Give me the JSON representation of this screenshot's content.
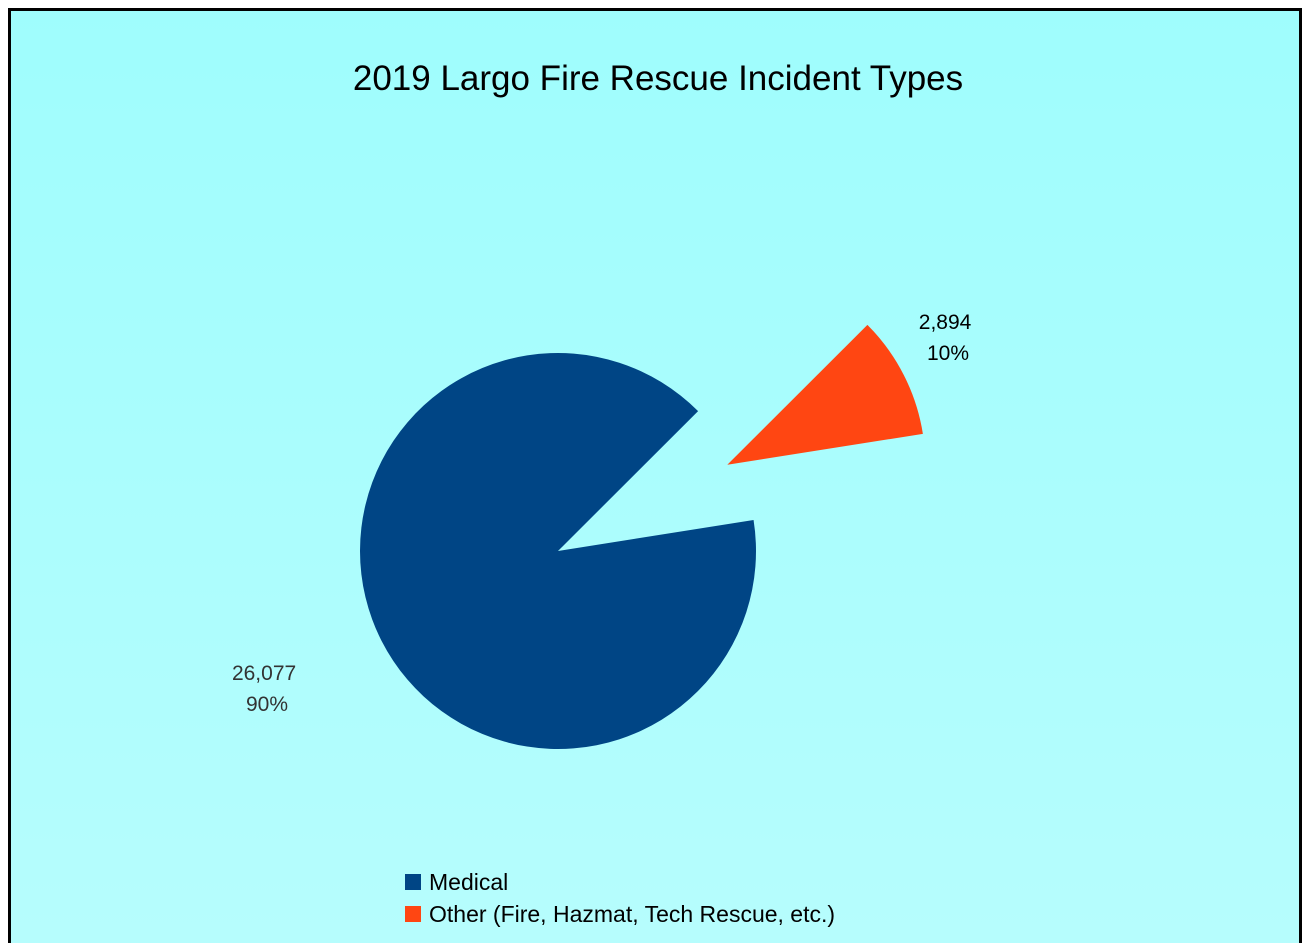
{
  "chart_data": {
    "type": "pie",
    "title": "2019 Largo Fire Rescue Incident Types",
    "categories": [
      "Medical",
      "Other (Fire, Hazmat, Tech Rescue, etc.)"
    ],
    "values": [
      26077,
      2894
    ],
    "labels": [
      {
        "value": "26,077",
        "percent": "90%"
      },
      {
        "value": "2,894",
        "percent": "10%"
      }
    ],
    "colors": [
      "#004585",
      "#ff4612"
    ],
    "exploded": [
      false,
      true
    ],
    "legend_position": "bottom"
  }
}
